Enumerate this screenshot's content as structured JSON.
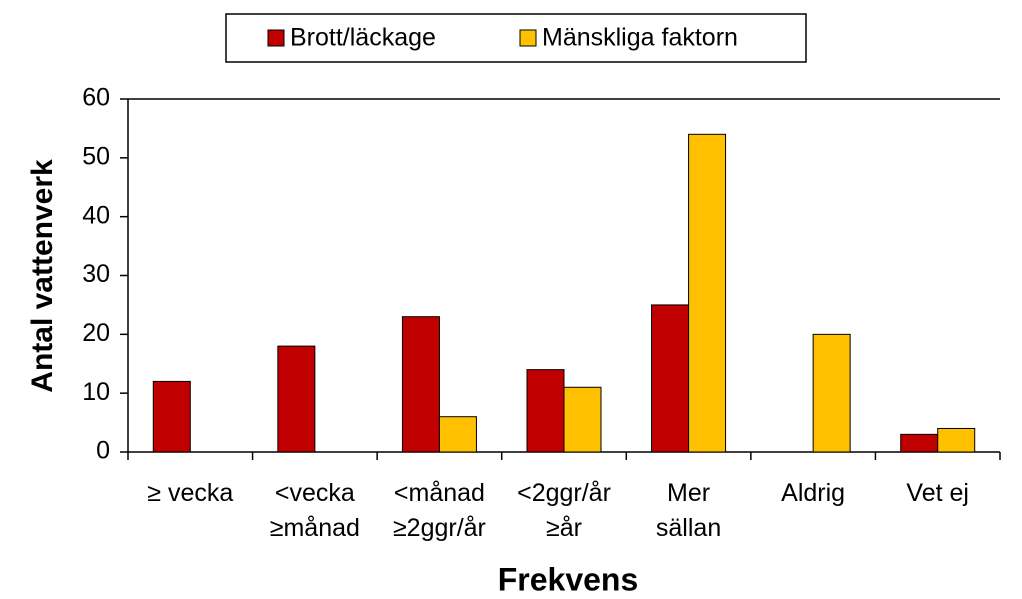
{
  "chart_data": {
    "type": "bar",
    "categories": [
      "≥ vecka",
      "<vecka\n≥månad",
      "<månad\n≥2ggr/år",
      "<2ggr/år\n≥år",
      "Mer\nsällan",
      "Aldrig",
      "Vet ej"
    ],
    "series": [
      {
        "name": "Brott/läckage",
        "color": "#c00000",
        "values": [
          12,
          18,
          23,
          14,
          25,
          0,
          3
        ]
      },
      {
        "name": "Mänskliga faktorn",
        "color": "#ffc000",
        "values": [
          0,
          0,
          6,
          11,
          54,
          20,
          4
        ]
      }
    ],
    "xlabel": "Frekvens",
    "ylabel": "Antal vattenverk",
    "ylim": [
      0,
      60
    ],
    "yticks": [
      0,
      10,
      20,
      30,
      40,
      50,
      60
    ],
    "grid": false,
    "legend": "top"
  }
}
